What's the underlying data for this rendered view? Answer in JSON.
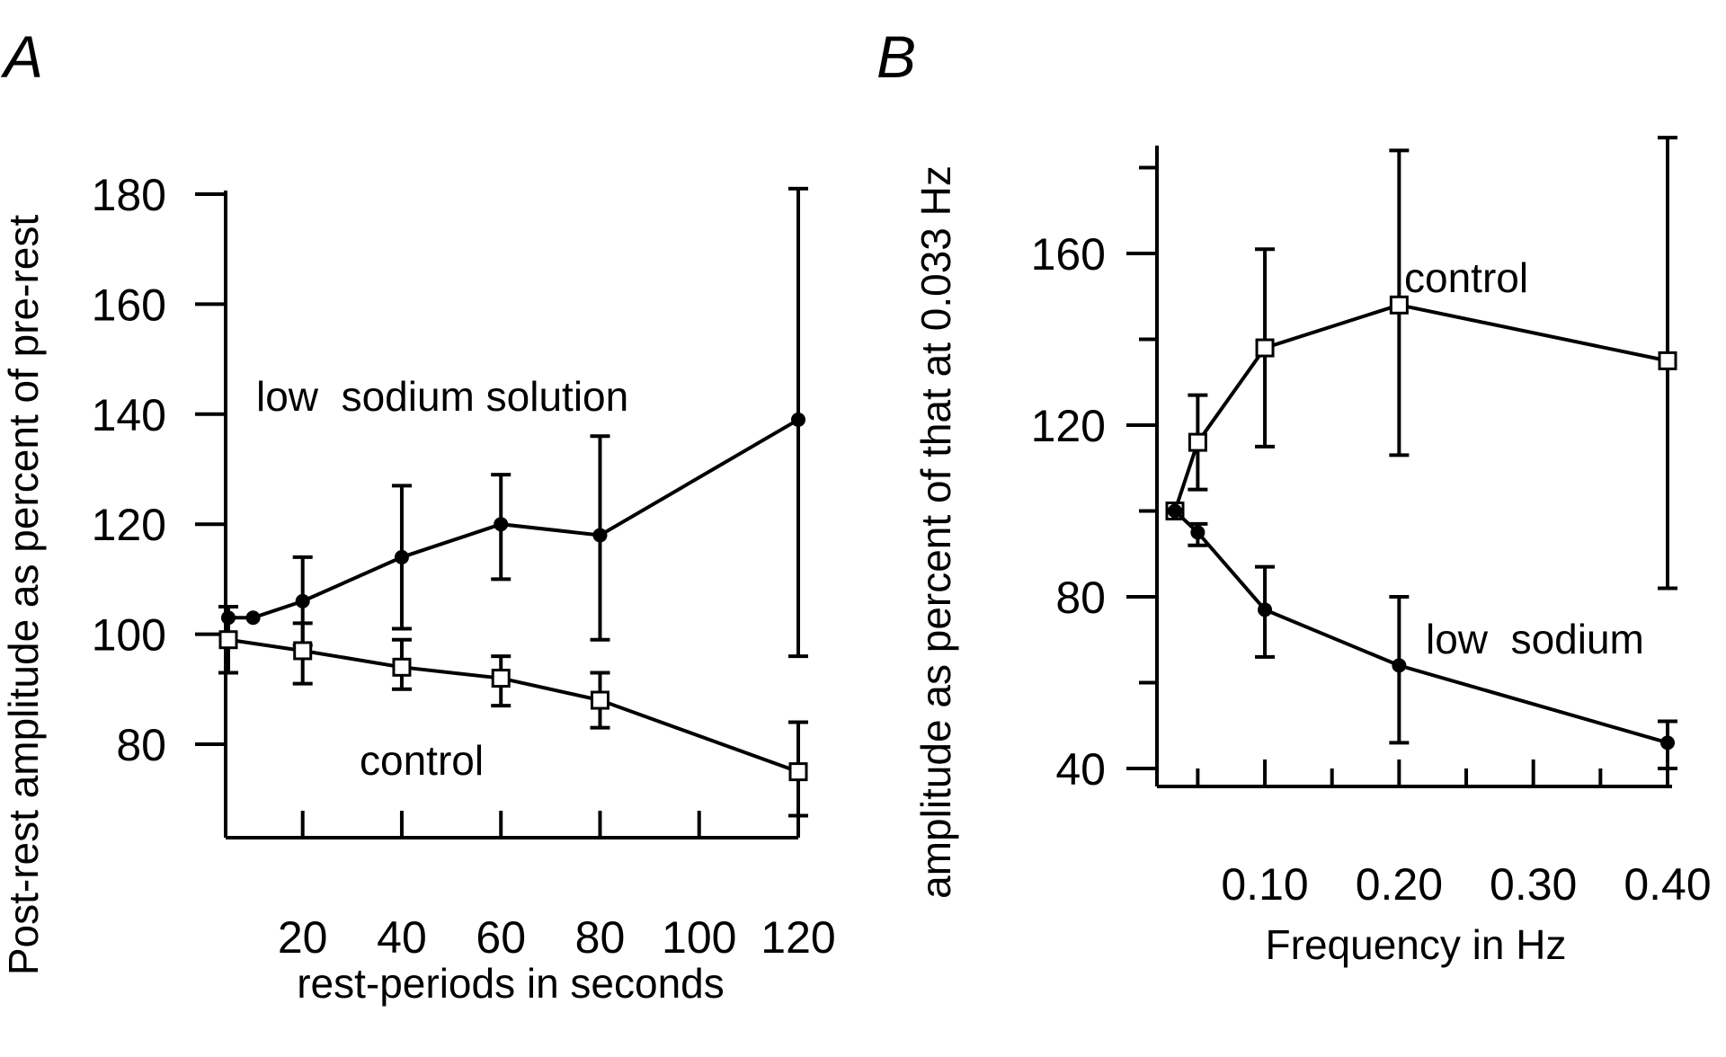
{
  "chart_data": [
    {
      "panel": "A",
      "type": "line",
      "title": "",
      "xlabel": "rest-periods in seconds",
      "ylabel": "Post-rest amplitude as percent of pre-rest",
      "xlim": [
        0,
        122
      ],
      "ylim": [
        63,
        182
      ],
      "xticks": [
        20,
        40,
        60,
        80,
        100,
        120
      ],
      "yticks": [
        80,
        100,
        120,
        140,
        160,
        180
      ],
      "xticklabels": [
        "20",
        "40",
        "60",
        "80",
        "100",
        "120"
      ],
      "yticklabels": [
        "80",
        "100",
        "120",
        "140",
        "160",
        "180"
      ],
      "grid": false,
      "series": [
        {
          "name": "low sodium solution",
          "marker": "filled-circle",
          "x": [
            5,
            10,
            20,
            40,
            60,
            80,
            120
          ],
          "y": [
            103,
            103,
            106,
            114,
            120,
            118,
            139
          ],
          "yerr_low": [
            null,
            null,
            98,
            101,
            110,
            99,
            96
          ],
          "yerr_high": [
            null,
            null,
            114,
            127,
            129,
            136,
            181
          ]
        },
        {
          "name": "control",
          "marker": "open-square",
          "x": [
            5,
            20,
            40,
            60,
            80,
            120
          ],
          "y": [
            99,
            97,
            94,
            92,
            88,
            75
          ],
          "yerr_low": [
            93,
            91,
            90,
            87,
            83,
            67
          ],
          "yerr_high": [
            105,
            102,
            99,
            96,
            93,
            84
          ]
        }
      ],
      "annotations": [
        "low  sodium solution",
        "control"
      ]
    },
    {
      "panel": "B",
      "type": "line",
      "title": "",
      "xlabel": "Frequency in Hz",
      "ylabel": "amplitude as percent of that at 0.033 Hz",
      "xlim": [
        0.02,
        0.41
      ],
      "ylim": [
        35,
        185
      ],
      "xticks": [
        0.1,
        0.2,
        0.3,
        0.4
      ],
      "yticks": [
        40,
        80,
        120,
        160
      ],
      "xticklabels": [
        "0.10",
        "0.20",
        "0.30",
        "0.40"
      ],
      "yticklabels": [
        "40",
        "80",
        "120",
        "160"
      ],
      "grid": false,
      "series": [
        {
          "name": "control",
          "marker": "open-square",
          "x": [
            0.033,
            0.05,
            0.1,
            0.2,
            0.4
          ],
          "y": [
            100,
            116,
            138,
            148,
            135
          ],
          "yerr_low": [
            null,
            105,
            115,
            113,
            82
          ],
          "yerr_high": [
            null,
            127,
            161,
            184,
            187
          ]
        },
        {
          "name": "low sodium",
          "marker": "filled-circle",
          "x": [
            0.033,
            0.05,
            0.1,
            0.2,
            0.4
          ],
          "y": [
            100,
            95,
            77,
            64,
            46
          ],
          "yerr_low": [
            null,
            92,
            66,
            46,
            40
          ],
          "yerr_high": [
            null,
            97,
            87,
            80,
            51
          ]
        }
      ],
      "annotations": [
        "control",
        "low  sodium"
      ]
    }
  ]
}
